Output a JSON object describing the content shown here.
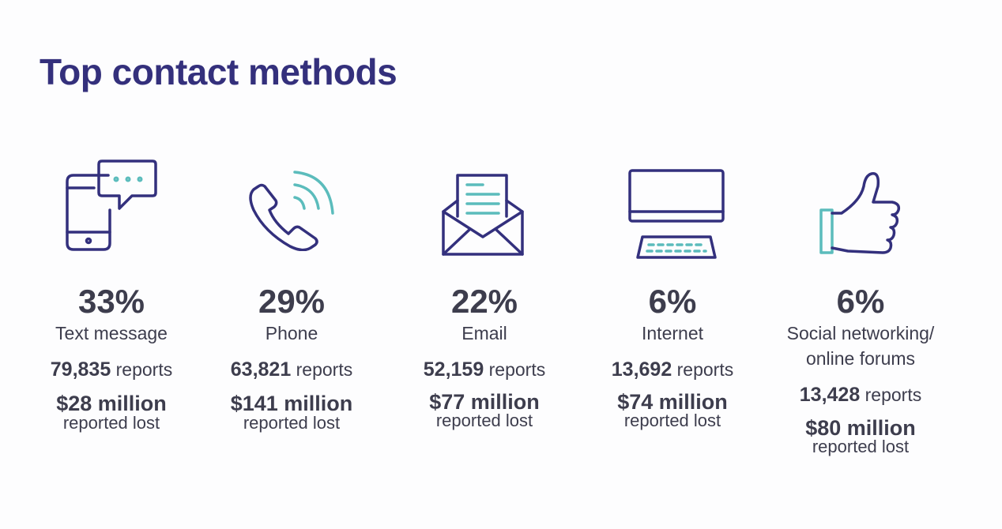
{
  "title": "Top contact methods",
  "methods": [
    {
      "icon": "phone-message-icon",
      "percent": "33%",
      "label": "Text message",
      "reports_count": "79,835",
      "reports_label": "reports",
      "loss": "$28 million",
      "loss_label": "reported lost"
    },
    {
      "icon": "phone-call-icon",
      "percent": "29%",
      "label": "Phone",
      "reports_count": "63,821",
      "reports_label": "reports",
      "loss": "$141 million",
      "loss_label": "reported lost"
    },
    {
      "icon": "email-envelope-icon",
      "percent": "22%",
      "label": "Email",
      "reports_count": "52,159",
      "reports_label": "reports",
      "loss": "$77 million",
      "loss_label": "reported lost"
    },
    {
      "icon": "computer-icon",
      "percent": "6%",
      "label": "Internet",
      "reports_count": "13,692",
      "reports_label": "reports",
      "loss": "$74 million",
      "loss_label": "reported lost"
    },
    {
      "icon": "thumbs-up-icon",
      "percent": "6%",
      "label_line1": "Social networking/",
      "label_line2": "online forums",
      "reports_count": "13,428",
      "reports_label": "reports",
      "loss": "$80 million",
      "loss_label": "reported lost"
    }
  ],
  "colors": {
    "title": "#34307c",
    "icon_primary": "#33307d",
    "icon_accent": "#5bbcbc",
    "text": "#3d3d4d"
  }
}
